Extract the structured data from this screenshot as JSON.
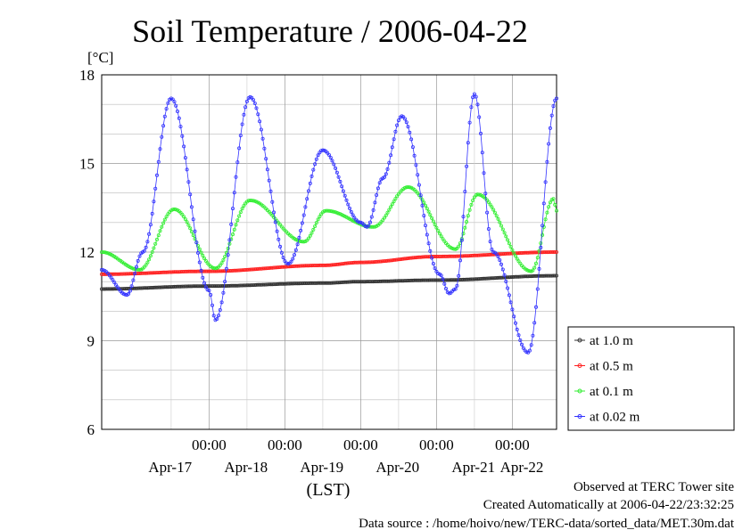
{
  "title": "Soil Temperature / 2006-04-22",
  "unit_label": "[°C]",
  "y_ticks": [
    "18",
    "15",
    "12",
    "9",
    "6"
  ],
  "time_ticks": [
    "00:00",
    "00:00",
    "00:00",
    "00:00",
    "00:00"
  ],
  "date_ticks": [
    "Apr-17",
    "Apr-18",
    "Apr-19",
    "Apr-20",
    "Apr-21",
    "Apr-22"
  ],
  "time_zone_label": "(LST)",
  "footer": {
    "site": "Observed at TERC Tower site",
    "created": "Created Automatically at 2006-04-22/23:32:25",
    "source": "Data source : /home/hoivo/new/TERC-data/sorted_data/MET.30m.dat"
  },
  "chart_data": {
    "type": "line",
    "title": "Soil Temperature / 2006-04-22",
    "ylabel": "[°C]",
    "xlabel": "(LST)",
    "ylim": [
      6,
      18
    ],
    "xlim_days": [
      "2006-04-16T14:00",
      "2006-04-22T14:00"
    ],
    "grid": true,
    "legend_position": "right",
    "series": [
      {
        "name": "at 1.0 m",
        "color": "#333333",
        "marker": "circle",
        "x": [
          "2006-04-16T14:00",
          "2006-04-18T00:00",
          "2006-04-19T12:00",
          "2006-04-20T00:00",
          "2006-04-21T00:00",
          "2006-04-22T14:00"
        ],
        "y": [
          10.75,
          10.85,
          10.95,
          11.0,
          11.05,
          11.2
        ]
      },
      {
        "name": "at 0.5 m",
        "color": "#ff2020",
        "marker": "circle",
        "x": [
          "2006-04-16T14:00",
          "2006-04-18T00:00",
          "2006-04-19T12:00",
          "2006-04-20T00:00",
          "2006-04-21T00:00",
          "2006-04-22T14:00"
        ],
        "y": [
          11.25,
          11.35,
          11.55,
          11.65,
          11.85,
          12.0
        ]
      },
      {
        "name": "at 0.1 m",
        "color": "#33ee33",
        "marker": "circle",
        "x": [
          "2006-04-16T14:00",
          "2006-04-17T02:00",
          "2006-04-17T13:00",
          "2006-04-18T02:00",
          "2006-04-18T13:00",
          "2006-04-19T06:00",
          "2006-04-19T13:00",
          "2006-04-20T04:00",
          "2006-04-20T15:00",
          "2006-04-21T06:00",
          "2006-04-21T13:00",
          "2006-04-22T06:00",
          "2006-04-22T13:00",
          "2006-04-22T14:00"
        ],
        "y": [
          12.0,
          11.4,
          13.45,
          11.45,
          13.75,
          12.35,
          13.4,
          12.85,
          14.2,
          12.1,
          13.95,
          11.35,
          13.8,
          13.4
        ]
      },
      {
        "name": "at 0.02 m",
        "color": "#3333ff",
        "marker": "circle",
        "x": [
          "2006-04-16T14:00",
          "2006-04-16T22:00",
          "2006-04-17T03:00",
          "2006-04-17T12:00",
          "2006-04-18T00:00",
          "2006-04-18T02:00",
          "2006-04-18T13:00",
          "2006-04-19T01:00",
          "2006-04-19T12:00",
          "2006-04-20T00:00",
          "2006-04-20T02:00",
          "2006-04-20T07:00",
          "2006-04-20T13:00",
          "2006-04-21T01:00",
          "2006-04-21T04:00",
          "2006-04-21T06:00",
          "2006-04-21T12:00",
          "2006-04-21T18:00",
          "2006-04-22T05:00",
          "2006-04-22T14:00"
        ],
        "y": [
          11.4,
          10.55,
          12.0,
          17.2,
          10.7,
          9.7,
          17.25,
          11.6,
          15.45,
          13.0,
          12.85,
          14.5,
          16.6,
          11.25,
          10.6,
          10.75,
          17.35,
          12.0,
          8.6,
          17.2
        ]
      }
    ]
  }
}
